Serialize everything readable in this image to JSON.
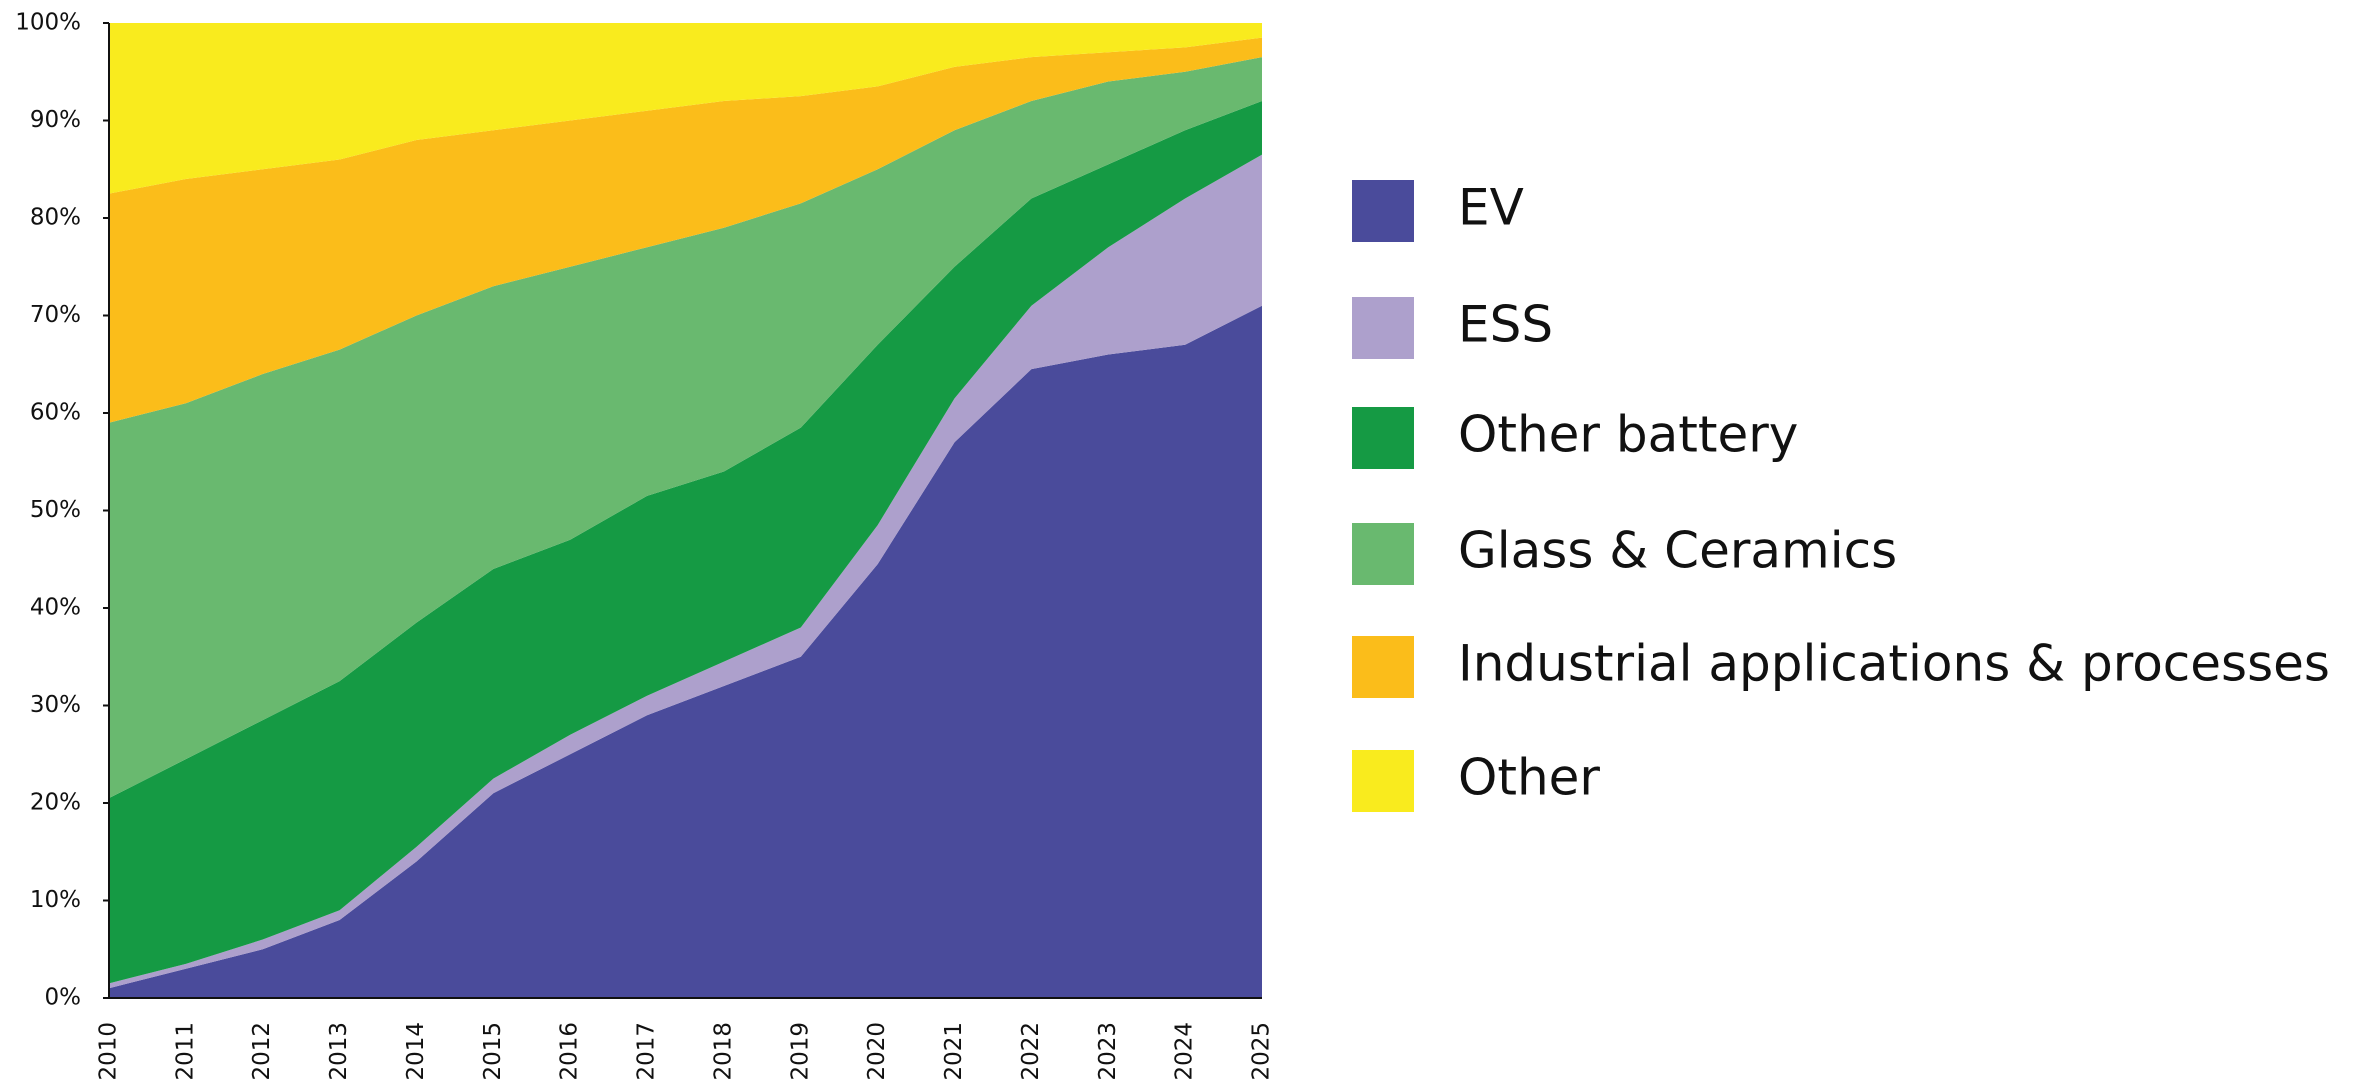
{
  "chart_data": {
    "type": "stacked_area",
    "categories": [
      "2010",
      "2011",
      "2012",
      "2013",
      "2014",
      "2015",
      "2016",
      "2017",
      "2018",
      "2019",
      "2020",
      "2021",
      "2022",
      "2023",
      "2024",
      "2025"
    ],
    "series": [
      {
        "name": "EV",
        "color": "#4a4b9b",
        "values": [
          1,
          3,
          5,
          8,
          14,
          21,
          25,
          29,
          32,
          35,
          44.5,
          57,
          64.5,
          66,
          67,
          71
        ]
      },
      {
        "name": "ESS",
        "color": "#ada0cc",
        "values": [
          0.5,
          0.5,
          1,
          1,
          1.5,
          1.5,
          2,
          2,
          2.5,
          3,
          4,
          4.5,
          6.5,
          11,
          15,
          15.5
        ]
      },
      {
        "name": "Other battery",
        "color": "#159a44",
        "values": [
          19,
          21,
          22.5,
          23.5,
          23,
          21.5,
          20,
          20.5,
          19.5,
          20.5,
          18.5,
          13.5,
          11,
          8.5,
          7,
          5.5
        ]
      },
      {
        "name": "Glass & Ceramics",
        "color": "#69b96f",
        "values": [
          38.5,
          36.5,
          35.5,
          34,
          31.5,
          29,
          28,
          25.5,
          25,
          23,
          18,
          14,
          10,
          8.5,
          6,
          4.5
        ]
      },
      {
        "name": "Industrial applications & processes",
        "color": "#fbbd1a",
        "values": [
          23.5,
          23,
          21,
          19.5,
          18,
          16,
          15,
          14,
          13,
          11,
          8.5,
          6.5,
          4.5,
          3,
          2.5,
          2
        ]
      },
      {
        "name": "Other",
        "color": "#f9eb1e",
        "values": [
          17.5,
          16,
          15,
          14,
          12,
          11,
          10,
          9,
          8,
          7.5,
          6.5,
          4.5,
          3.5,
          3,
          2.5,
          1.5
        ]
      }
    ],
    "ylim": [
      0,
      100
    ],
    "yticks": [
      {
        "value": 0,
        "label": "0%"
      },
      {
        "value": 10,
        "label": "10%"
      },
      {
        "value": 20,
        "label": "20%"
      },
      {
        "value": 30,
        "label": "30%"
      },
      {
        "value": 40,
        "label": "40%"
      },
      {
        "value": 50,
        "label": "50%"
      },
      {
        "value": 60,
        "label": "60%"
      },
      {
        "value": 70,
        "label": "70%"
      },
      {
        "value": 80,
        "label": "80%"
      },
      {
        "value": 90,
        "label": "90%"
      },
      {
        "value": 100,
        "label": "100%"
      }
    ],
    "legend": "right"
  }
}
